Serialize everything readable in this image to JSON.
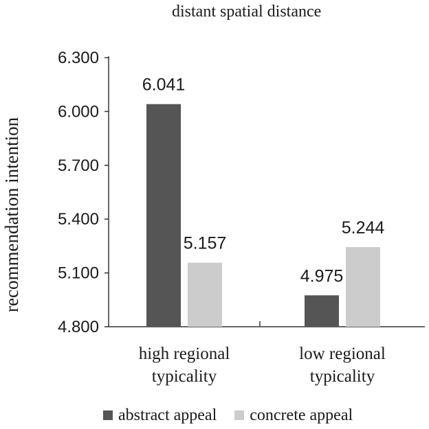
{
  "chart_data": {
    "type": "bar",
    "title": "distant spatial distance",
    "xlabel": "",
    "ylabel": "recommendation intention",
    "categories": [
      [
        "high regional",
        "typicality"
      ],
      [
        "low regional",
        "typicality"
      ]
    ],
    "series": [
      {
        "name": "abstract appeal",
        "color": "#555555",
        "values": [
          6.041,
          4.975
        ],
        "labels": [
          "6.041",
          "4.975"
        ]
      },
      {
        "name": "concrete appeal",
        "color": "#cccccc",
        "values": [
          5.157,
          5.244
        ],
        "labels": [
          "5.157",
          "5.244"
        ]
      }
    ],
    "ylim": [
      4.8,
      6.3
    ],
    "yticks": [
      4.8,
      5.1,
      5.4,
      5.7,
      6.0,
      6.3
    ],
    "ytick_labels": [
      "4.800",
      "5.100",
      "5.400",
      "5.700",
      "6.000",
      "6.300"
    ],
    "grid": false,
    "legend_position": "bottom"
  }
}
